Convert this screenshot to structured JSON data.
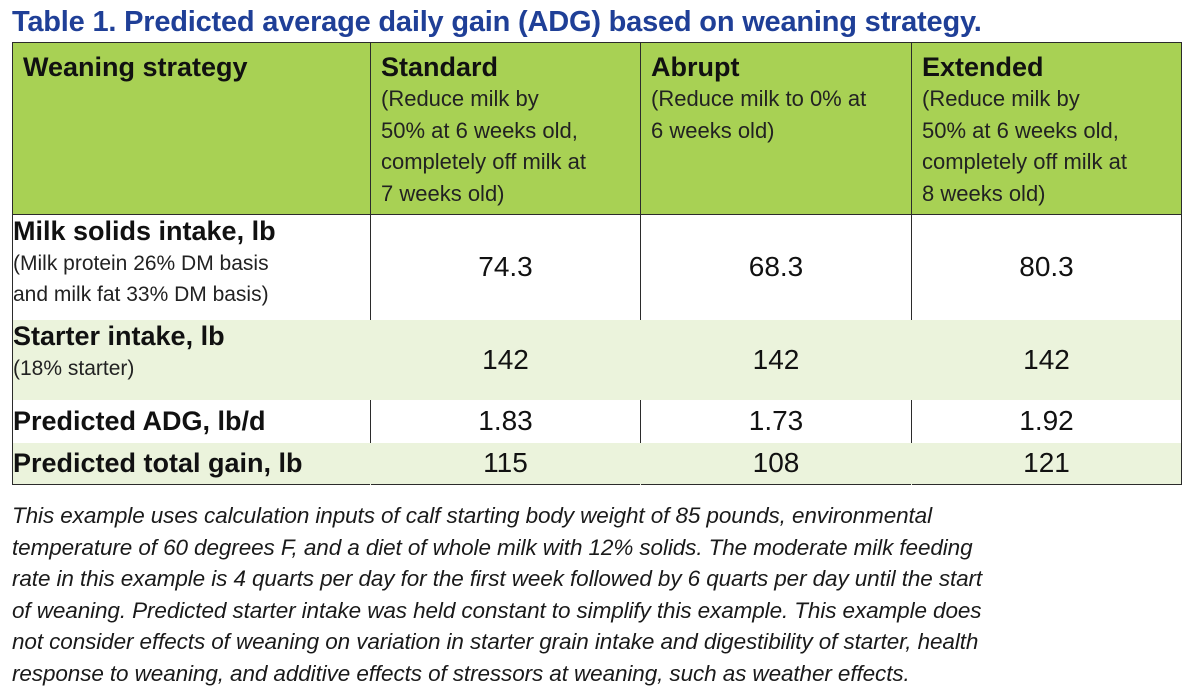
{
  "title": "Table 1. Predicted average daily gain (ADG) based on weaning strategy.",
  "colors": {
    "title": "#1f3f97",
    "header_bg": "#a8d154",
    "row_tint": "#ebf3dc",
    "row_white": "#ffffff"
  },
  "table": {
    "header": {
      "label": "Weaning strategy",
      "columns": [
        {
          "name": "Standard",
          "desc_lines": [
            "(Reduce milk by",
            "50% at 6 weeks old,",
            "completely off milk at",
            "7 weeks old)"
          ]
        },
        {
          "name": "Abrupt",
          "desc_lines": [
            "(Reduce milk to 0% at",
            "6 weeks old)"
          ]
        },
        {
          "name": "Extended",
          "desc_lines": [
            "(Reduce milk by",
            "50% at 6 weeks old,",
            "completely off milk at",
            "8 weeks old)"
          ]
        }
      ]
    },
    "rows": [
      {
        "label": "Milk solids intake, lb",
        "note_lines": [
          "(Milk protein 26% DM basis",
          "and milk fat 33% DM basis)"
        ],
        "values": [
          "74.3",
          "68.3",
          "80.3"
        ]
      },
      {
        "label": "Starter intake, lb",
        "note_lines": [
          "(18% starter)"
        ],
        "values": [
          "142",
          "142",
          "142"
        ]
      },
      {
        "label": "Predicted ADG, lb/d",
        "note_lines": [],
        "values": [
          "1.83",
          "1.73",
          "1.92"
        ]
      },
      {
        "label": "Predicted total gain, lb",
        "note_lines": [],
        "values": [
          "115",
          "108",
          "121"
        ]
      }
    ]
  },
  "footnote_lines": [
    "This example uses calculation inputs of calf starting body weight of 85 pounds, environmental",
    "temperature of 60 degrees F, and a diet of whole milk with 12% solids.  The moderate milk feeding",
    "rate in this example is 4 quarts per day for the first week followed by 6 quarts per day until the start",
    "of weaning.  Predicted starter intake was held constant to simplify this example.  This example does",
    "not consider effects of weaning on variation in starter grain intake and digestibility of starter, health",
    "response to weaning, and additive effects of stressors at weaning, such as weather effects."
  ]
}
